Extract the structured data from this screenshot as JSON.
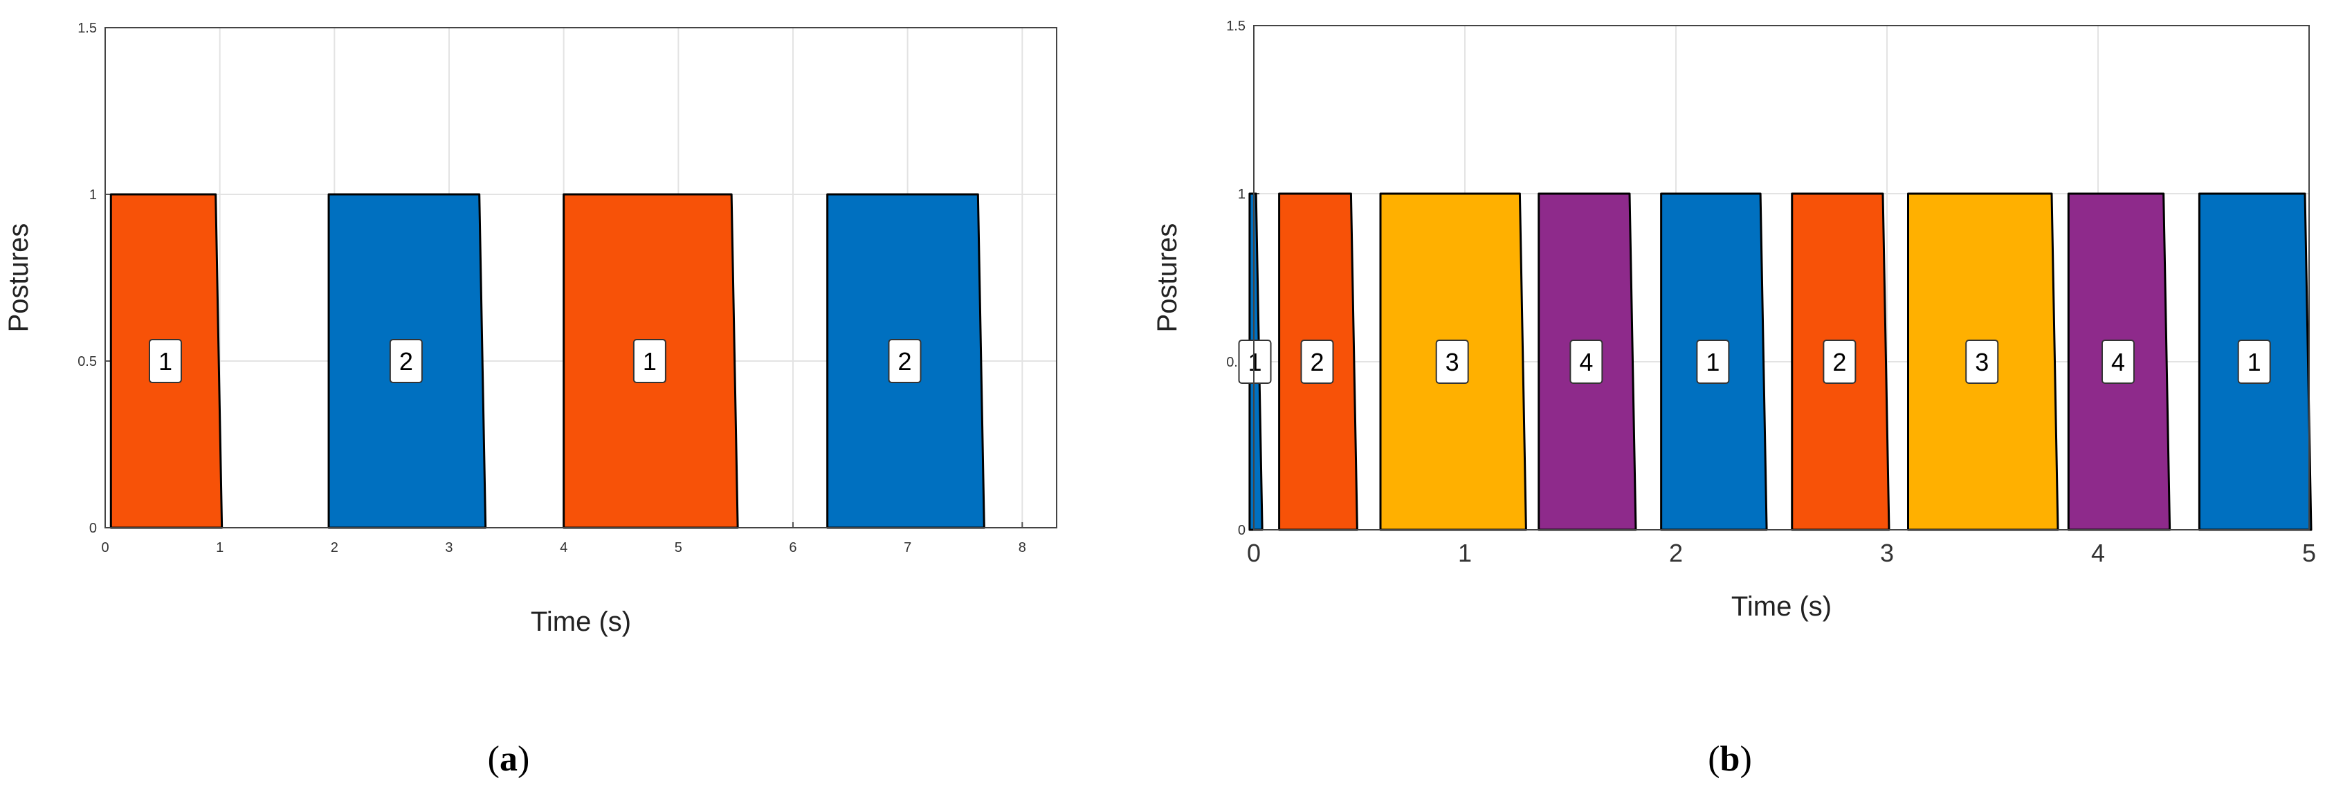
{
  "chart_data": [
    {
      "type": "bar",
      "panel_label": "a",
      "xlabel": "Time (s)",
      "ylabel": "Postures",
      "xlim": [
        0,
        8.3
      ],
      "ylim": [
        0,
        1.5
      ],
      "x_ticks": [
        "0",
        "1",
        "2",
        "3",
        "4",
        "5",
        "6",
        "7",
        "8"
      ],
      "y_ticks": [
        "0",
        "0.5",
        "1",
        "1.5"
      ],
      "grid": true,
      "segments": [
        {
          "label": "1",
          "start": 0.05,
          "end": 1.0,
          "value": 1,
          "color": "#F75208"
        },
        {
          "label": "2",
          "start": 1.95,
          "end": 3.3,
          "value": 1,
          "color": "#0070C0"
        },
        {
          "label": "1",
          "start": 4.0,
          "end": 5.5,
          "value": 1,
          "color": "#F75208"
        },
        {
          "label": "2",
          "start": 6.3,
          "end": 7.65,
          "value": 1,
          "color": "#0070C0"
        }
      ]
    },
    {
      "type": "bar",
      "panel_label": "b",
      "xlabel": "Time (s)",
      "ylabel": "Postures",
      "xlim": [
        0,
        5
      ],
      "ylim": [
        0,
        1.5
      ],
      "x_ticks": [
        "0",
        "1",
        "2",
        "3",
        "4",
        "5"
      ],
      "y_ticks": [
        "0",
        "0.5",
        "1",
        "1.5"
      ],
      "grid": true,
      "segments": [
        {
          "label": "1",
          "start": -0.02,
          "end": 0.03,
          "value": 1,
          "color": "#0070C0"
        },
        {
          "label": "2",
          "start": 0.12,
          "end": 0.48,
          "value": 1,
          "color": "#F75208"
        },
        {
          "label": "3",
          "start": 0.6,
          "end": 1.28,
          "value": 1,
          "color": "#FFB000"
        },
        {
          "label": "4",
          "start": 1.35,
          "end": 1.8,
          "value": 1,
          "color": "#8E2A8B"
        },
        {
          "label": "1",
          "start": 1.93,
          "end": 2.42,
          "value": 1,
          "color": "#0070C0"
        },
        {
          "label": "2",
          "start": 2.55,
          "end": 3.0,
          "value": 1,
          "color": "#F75208"
        },
        {
          "label": "3",
          "start": 3.1,
          "end": 3.8,
          "value": 1,
          "color": "#FFB000"
        },
        {
          "label": "4",
          "start": 3.86,
          "end": 4.33,
          "value": 1,
          "color": "#8E2A8B"
        },
        {
          "label": "1",
          "start": 4.48,
          "end": 5.0,
          "value": 1,
          "color": "#0070C0"
        }
      ]
    }
  ]
}
